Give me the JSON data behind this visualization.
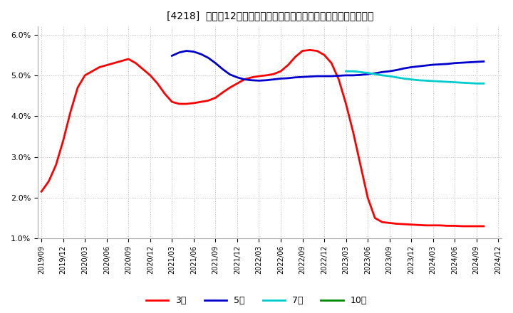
{
  "title": "[4218]  売上高12か月移動合計の対前年同期増減率の標準偏差の推移",
  "ylim": [
    0.01,
    0.062
  ],
  "yticks": [
    0.01,
    0.02,
    0.03,
    0.04,
    0.05,
    0.06
  ],
  "background_color": "#ffffff",
  "plot_bg_color": "#ffffff",
  "grid_color": "#bbbbbb",
  "xtick_labels": [
    "2019/09",
    "2019/12",
    "2020/03",
    "2020/06",
    "2020/09",
    "2020/12",
    "2021/03",
    "2021/06",
    "2021/09",
    "2021/12",
    "2022/03",
    "2022/06",
    "2022/09",
    "2022/12",
    "2023/03",
    "2023/06",
    "2023/09",
    "2023/12",
    "2024/03",
    "2024/06",
    "2024/09",
    "2024/12"
  ],
  "xtick_positions": [
    0,
    3,
    6,
    9,
    12,
    15,
    18,
    21,
    24,
    27,
    30,
    33,
    36,
    39,
    42,
    45,
    48,
    51,
    54,
    57,
    60,
    63
  ],
  "series": {
    "3year": {
      "color": "#ff0000",
      "label": "3年",
      "x": [
        0,
        1,
        2,
        3,
        4,
        5,
        6,
        7,
        8,
        9,
        10,
        11,
        12,
        13,
        14,
        15,
        16,
        17,
        18,
        19,
        20,
        21,
        22,
        23,
        24,
        25,
        26,
        27,
        28,
        29,
        30,
        31,
        32,
        33,
        34,
        35,
        36,
        37,
        38,
        39,
        40,
        41,
        42,
        43,
        44,
        45,
        46,
        47,
        48,
        49,
        50,
        51,
        52,
        53,
        54,
        55,
        56,
        57,
        58,
        59,
        60,
        61
      ],
      "y": [
        0.0215,
        0.024,
        0.028,
        0.034,
        0.041,
        0.047,
        0.05,
        0.051,
        0.052,
        0.0525,
        0.053,
        0.0535,
        0.054,
        0.053,
        0.0515,
        0.05,
        0.048,
        0.0455,
        0.0435,
        0.043,
        0.043,
        0.0432,
        0.0435,
        0.0438,
        0.0445,
        0.0458,
        0.047,
        0.048,
        0.049,
        0.0495,
        0.0498,
        0.05,
        0.0503,
        0.051,
        0.0525,
        0.0545,
        0.056,
        0.0562,
        0.056,
        0.055,
        0.053,
        0.049,
        0.043,
        0.036,
        0.028,
        0.02,
        0.015,
        0.014,
        0.0138,
        0.0136,
        0.0135,
        0.0134,
        0.0133,
        0.0132,
        0.0132,
        0.0132,
        0.0131,
        0.0131,
        0.013,
        0.013,
        0.013,
        0.013
      ]
    },
    "5year": {
      "color": "#0000cc",
      "label": "5年",
      "x": [
        0,
        1,
        2,
        3,
        4,
        5,
        6,
        7,
        8,
        9,
        10,
        11,
        12,
        13,
        14,
        15,
        16,
        17,
        18,
        19,
        20,
        21,
        22,
        23,
        24,
        25,
        26,
        27,
        28,
        29,
        30,
        31,
        32,
        33,
        34,
        35,
        36,
        37,
        38,
        39,
        40,
        41,
        42,
        43,
        44,
        45,
        46,
        47,
        48,
        49,
        50,
        51,
        52,
        53,
        54,
        55,
        56,
        57,
        58,
        59,
        60,
        61
      ],
      "y": [
        null,
        null,
        null,
        null,
        null,
        null,
        null,
        null,
        null,
        null,
        null,
        null,
        null,
        null,
        null,
        null,
        null,
        null,
        0.0548,
        0.0556,
        0.056,
        0.0558,
        0.0552,
        0.0543,
        0.053,
        0.0515,
        0.0502,
        0.0495,
        0.049,
        0.0488,
        0.0487,
        0.0488,
        0.049,
        0.0492,
        0.0493,
        0.0495,
        0.0496,
        0.0497,
        0.0498,
        0.0498,
        0.0498,
        0.0499,
        0.05,
        0.05,
        0.0501,
        0.0503,
        0.0505,
        0.0508,
        0.051,
        0.0513,
        0.0517,
        0.052,
        0.0522,
        0.0524,
        0.0526,
        0.0527,
        0.0528,
        0.053,
        0.0531,
        0.0532,
        0.0533,
        0.0534
      ]
    },
    "7year": {
      "color": "#00cccc",
      "label": "7年",
      "x": [
        0,
        1,
        2,
        3,
        4,
        5,
        6,
        7,
        8,
        9,
        10,
        11,
        12,
        13,
        14,
        15,
        16,
        17,
        18,
        19,
        20,
        21,
        22,
        23,
        24,
        25,
        26,
        27,
        28,
        29,
        30,
        31,
        32,
        33,
        34,
        35,
        36,
        37,
        38,
        39,
        40,
        41,
        42,
        43,
        44,
        45,
        46,
        47,
        48,
        49,
        50,
        51,
        52,
        53,
        54,
        55,
        56,
        57,
        58,
        59,
        60,
        61
      ],
      "y": [
        null,
        null,
        null,
        null,
        null,
        null,
        null,
        null,
        null,
        null,
        null,
        null,
        null,
        null,
        null,
        null,
        null,
        null,
        null,
        null,
        null,
        null,
        null,
        null,
        null,
        null,
        null,
        null,
        null,
        null,
        null,
        null,
        null,
        null,
        null,
        null,
        null,
        null,
        null,
        null,
        null,
        null,
        0.051,
        0.051,
        0.0508,
        0.0506,
        0.0503,
        0.05,
        0.0498,
        0.0495,
        0.0492,
        0.049,
        0.0488,
        0.0487,
        0.0486,
        0.0485,
        0.0484,
        0.0483,
        0.0482,
        0.0481,
        0.048,
        0.048
      ]
    },
    "10year": {
      "color": "#008800",
      "label": "10年",
      "x": [],
      "y": []
    }
  }
}
